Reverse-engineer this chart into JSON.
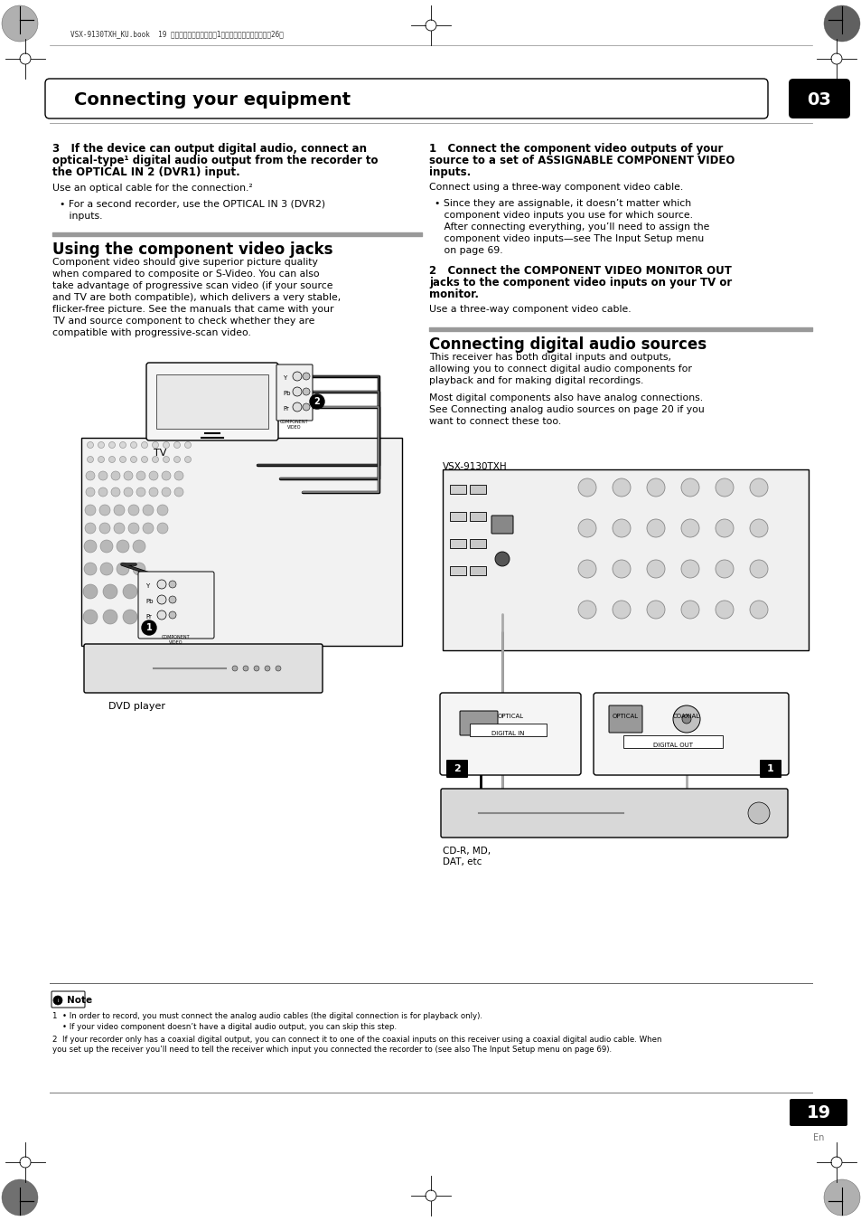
{
  "page_bg": "#ffffff",
  "header_text": "VSX-9130TXH_KU.book  19 ページ　２００８年４月1７日　木曜日　午前１１時26分",
  "chapter_title": "Connecting your equipment",
  "chapter_number": "03",
  "page_number": "19",
  "page_number_sub": "En",
  "label_tv": "TV",
  "label_dvd": "DVD player",
  "label_vsx1": "VSX-9130TXH",
  "label_vsx2": "VSX-9130TXH",
  "label_cdmd": "CD-R, MD,\nDAT, etc",
  "note_title": "Note",
  "note1": "1  • In order to record, you must connect the analog audio cables (the digital connection is for playback only).",
  "note2": "    • If your video component doesn’t have a digital audio output, you can skip this step.",
  "note3": "2  If your recorder only has a coaxial digital output, you can connect it to one of the coaxial inputs on this receiver using a coaxial digital audio cable. When\nyou set up the receiver you’ll need to tell the receiver which input you connected the recorder to (see also The Input Setup menu on page 69).",
  "left_col": {
    "sec1_lines": [
      "3   If the device can output digital audio, connect an",
      "optical-type¹ digital audio output from the recorder to",
      "the OPTICAL IN 2 (DVR1) input."
    ],
    "sec1_body": "Use an optical cable for the connection.²",
    "sec1_bul1": "• For a second recorder, use the OPTICAL IN 3 (DVR2)",
    "sec1_bul2": "   inputs.",
    "sec2_title": "Using the component video jacks",
    "sec2_body": [
      "Component video should give superior picture quality",
      "when compared to composite or S-Video. You can also",
      "take advantage of progressive scan video (if your source",
      "and TV are both compatible), which delivers a very stable,",
      "flicker-free picture. See the manuals that came with your",
      "TV and source component to check whether they are",
      "compatible with progressive-scan video."
    ]
  },
  "right_col": {
    "sec1_lines": [
      "1   Connect the component video outputs of your",
      "source to a set of ASSIGNABLE COMPONENT VIDEO",
      "inputs."
    ],
    "sec1_body": "Connect using a three-way component video cable.",
    "sec1_bul": [
      "• Since they are assignable, it doesn’t matter which",
      "   component video inputs you use for which source.",
      "   After connecting everything, you’ll need to assign the",
      "   component video inputs—see The Input Setup menu",
      "   on page 69."
    ],
    "sec2_lines": [
      "2   Connect the COMPONENT VIDEO MONITOR OUT",
      "jacks to the component video inputs on your TV or",
      "monitor."
    ],
    "sec2_body": "Use a three-way component video cable.",
    "sec3_title": "Connecting digital audio sources",
    "sec3_body1": [
      "This receiver has both digital inputs and outputs,",
      "allowing you to connect digital audio components for",
      "playback and for making digital recordings."
    ],
    "sec3_body2": [
      "Most digital components also have analog connections.",
      "See Connecting analog audio sources on page 20 if you",
      "want to connect these too."
    ]
  }
}
